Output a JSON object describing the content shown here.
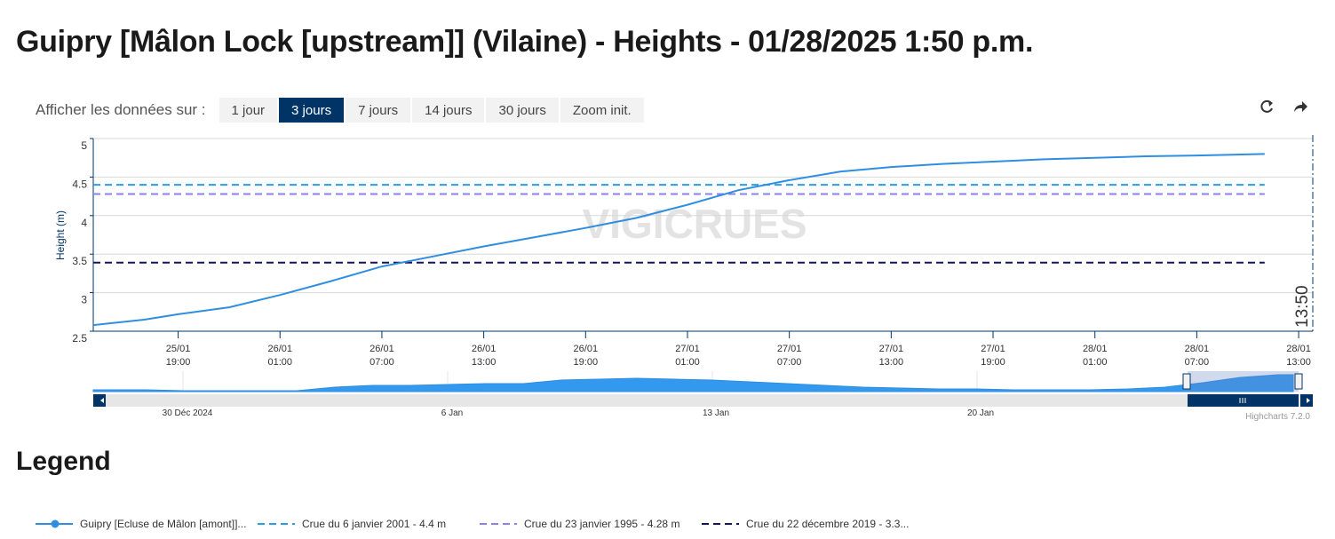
{
  "page_title": "Guipry [Mâlon Lock [upstream]] (Vilaine) - Heights - 01/28/2025 1:50 p.m.",
  "range_selector": {
    "label": "Afficher les données sur :",
    "buttons": [
      "1 jour",
      "3 jours",
      "7 jours",
      "14 jours",
      "30 jours",
      "Zoom init."
    ],
    "selected": 1
  },
  "legend_title": "Legend",
  "chart_data": {
    "type": "line",
    "y_label": "Height (m)",
    "watermark": "VIGICRUES",
    "credits": "Highcharts 7.2.0",
    "xlim": [
      "25/01 14:00",
      "28/01 13:50"
    ],
    "xticks": [
      "25/01 19:00",
      "26/01 01:00",
      "26/01 07:00",
      "26/01 13:00",
      "26/01 19:00",
      "27/01 01:00",
      "27/01 07:00",
      "27/01 13:00",
      "27/01 19:00",
      "28/01 01:00",
      "28/01 07:00",
      "28/01 13:00"
    ],
    "ylim": [
      2.5,
      5
    ],
    "yticks": [
      2.5,
      3,
      3.5,
      4,
      4.5,
      5
    ],
    "grid": true,
    "x": [
      "25/01 14:00",
      "25/01 17:00",
      "25/01 19:00",
      "25/01 22:00",
      "26/01 01:00",
      "26/01 04:00",
      "26/01 07:00",
      "26/01 10:00",
      "26/01 13:00",
      "26/01 16:00",
      "26/01 19:00",
      "26/01 22:00",
      "27/01 01:00",
      "27/01 04:00",
      "27/01 07:00",
      "27/01 10:00",
      "27/01 13:00",
      "27/01 16:00",
      "27/01 19:00",
      "27/01 22:00",
      "28/01 01:00",
      "28/01 04:00",
      "28/01 07:00",
      "28/01 11:00"
    ],
    "series": [
      {
        "name": "Guipry [Ecluse de Mâlon [amont]]...",
        "color": "#2f8ee0",
        "values": [
          2.58,
          2.65,
          2.72,
          2.81,
          2.97,
          3.15,
          3.34,
          3.47,
          3.6,
          3.72,
          3.84,
          3.97,
          4.14,
          4.33,
          4.46,
          4.57,
          4.63,
          4.67,
          4.7,
          4.73,
          4.75,
          4.77,
          4.78,
          4.8
        ]
      }
    ],
    "thresholds": [
      {
        "name": "Crue du 6 janvier 2001 - 4.4 m",
        "color": "#2b9de8",
        "value": 4.4
      },
      {
        "name": "Crue du 23 janvier 1995 - 4.28 m",
        "color": "#8c7fee",
        "value": 4.28
      },
      {
        "name": "Crue du 22 décembre 2019 - 3.3...",
        "color": "#14145e",
        "value": 3.39
      }
    ],
    "now": {
      "x": "28/01 13:50",
      "label": "13:50"
    },
    "navigator": {
      "labels": [
        "30 Déc 2024",
        "6 Jan",
        "13 Jan",
        "20 Jan"
      ],
      "ylim": [
        2.5,
        5
      ],
      "values": [
        2.72,
        2.72,
        2.61,
        2.61,
        2.61,
        2.61,
        3.04,
        3.26,
        3.26,
        3.37,
        3.48,
        3.48,
        3.91,
        4.02,
        4.13,
        4.02,
        3.91,
        3.7,
        3.48,
        3.26,
        3.04,
        2.93,
        2.83,
        2.83,
        2.72,
        2.72,
        2.72,
        2.83,
        3.04,
        3.59,
        4.24,
        4.57
      ]
    }
  }
}
